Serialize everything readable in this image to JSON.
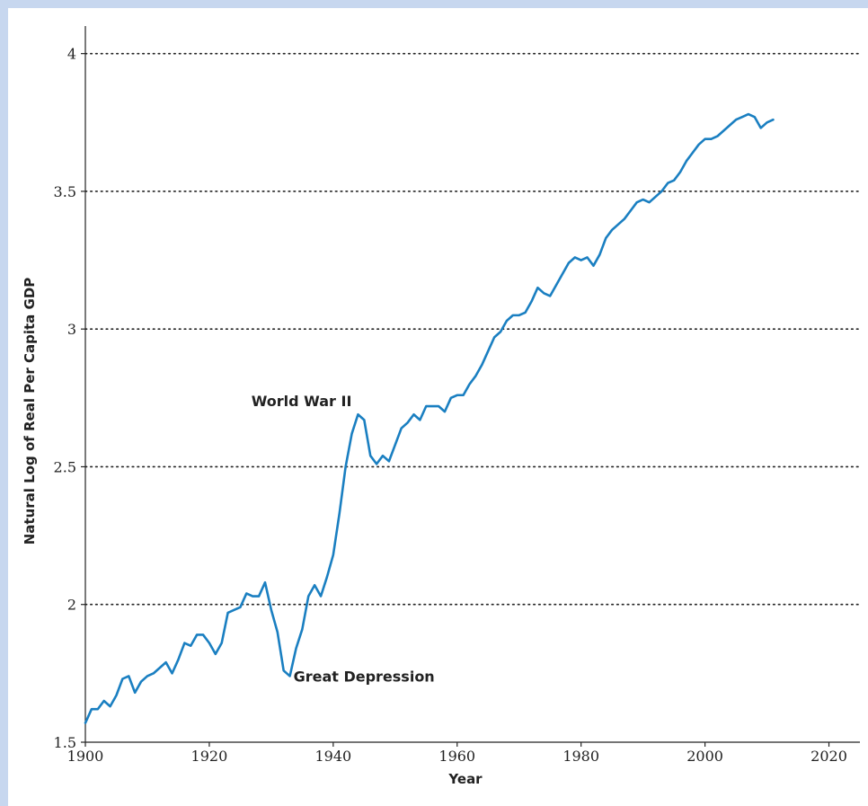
{
  "colors": {
    "frame": "#c7d7ef",
    "line": "#1a7fc1",
    "grid": "#222222"
  },
  "chart_data": {
    "type": "line",
    "xlabel": "Year",
    "ylabel": "Natural Log of Real Per Capita GDP",
    "xlim": [
      1900,
      2025
    ],
    "ylim": [
      1.5,
      4.1
    ],
    "xticks": [
      1900,
      1920,
      1940,
      1960,
      1980,
      2000,
      2020
    ],
    "yticks": [
      1.5,
      2,
      2.5,
      3,
      3.5,
      4
    ],
    "ytick_labels": [
      "1.5",
      "2",
      "2.5",
      "3",
      "3.5",
      "4"
    ],
    "grid": "horizontal dotted",
    "annotations": [
      {
        "text": "World War II",
        "x": 1944,
        "y": 2.71
      },
      {
        "text": "Great Depression",
        "x": 1933,
        "y": 1.74
      }
    ],
    "series": [
      {
        "x": [
          1900,
          1901,
          1902,
          1903,
          1904,
          1905,
          1906,
          1907,
          1908,
          1909,
          1910,
          1911,
          1912,
          1913,
          1914,
          1915,
          1916,
          1917,
          1918,
          1919,
          1920,
          1921,
          1922,
          1923,
          1924,
          1925,
          1926,
          1927,
          1928,
          1929,
          1930,
          1931,
          1932,
          1933,
          1934,
          1935,
          1936,
          1937,
          1938,
          1939,
          1940,
          1941,
          1942,
          1943,
          1944,
          1945,
          1946,
          1947,
          1948,
          1949,
          1950,
          1951,
          1952,
          1953,
          1954,
          1955,
          1956,
          1957,
          1958,
          1959,
          1960,
          1961,
          1962,
          1963,
          1964,
          1965,
          1966,
          1967,
          1968,
          1969,
          1970,
          1971,
          1972,
          1973,
          1974,
          1975,
          1976,
          1977,
          1978,
          1979,
          1980,
          1981,
          1982,
          1983,
          1984,
          1985,
          1986,
          1987,
          1988,
          1989,
          1990,
          1991,
          1992,
          1993,
          1994,
          1995,
          1996,
          1997,
          1998,
          1999,
          2000,
          2001,
          2002,
          2003,
          2004,
          2005,
          2006,
          2007,
          2008,
          2009,
          2010,
          2011
        ],
        "y": [
          1.57,
          1.62,
          1.62,
          1.65,
          1.63,
          1.67,
          1.73,
          1.74,
          1.68,
          1.72,
          1.74,
          1.75,
          1.77,
          1.79,
          1.75,
          1.8,
          1.86,
          1.85,
          1.89,
          1.89,
          1.86,
          1.82,
          1.86,
          1.97,
          1.98,
          1.99,
          2.04,
          2.03,
          2.03,
          2.08,
          1.98,
          1.9,
          1.76,
          1.74,
          1.84,
          1.91,
          2.03,
          2.07,
          2.03,
          2.1,
          2.18,
          2.33,
          2.5,
          2.62,
          2.69,
          2.67,
          2.54,
          2.51,
          2.54,
          2.52,
          2.58,
          2.64,
          2.66,
          2.69,
          2.67,
          2.72,
          2.72,
          2.72,
          2.7,
          2.75,
          2.76,
          2.76,
          2.8,
          2.83,
          2.87,
          2.92,
          2.97,
          2.99,
          3.03,
          3.05,
          3.05,
          3.06,
          3.1,
          3.15,
          3.13,
          3.12,
          3.16,
          3.2,
          3.24,
          3.26,
          3.25,
          3.26,
          3.23,
          3.27,
          3.33,
          3.36,
          3.38,
          3.4,
          3.43,
          3.46,
          3.47,
          3.46,
          3.48,
          3.5,
          3.53,
          3.54,
          3.57,
          3.61,
          3.64,
          3.67,
          3.69,
          3.69,
          3.7,
          3.72,
          3.74,
          3.76,
          3.77,
          3.78,
          3.77,
          3.73,
          3.75,
          3.76
        ]
      }
    ]
  }
}
